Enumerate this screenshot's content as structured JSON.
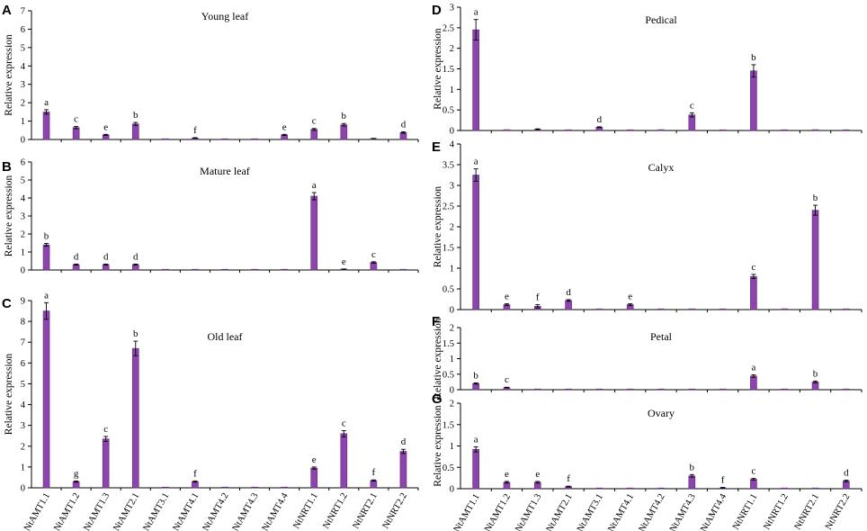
{
  "colors": {
    "bar": "#8e44ad",
    "bar_edge": "#5b2a72",
    "axis": "#000000"
  },
  "chart_data": [
    {
      "id": "A",
      "type": "bar",
      "title": "Young leaf",
      "ylabel": "Relative expression",
      "ylim": [
        0,
        7
      ],
      "yticks": [
        0,
        1,
        2,
        3,
        4,
        5,
        6,
        7
      ],
      "categories": [
        "NtAMT1.1",
        "NtAMT1.2",
        "NtAMT1.3",
        "NtAMT2.1",
        "NtAMT3.1",
        "NtAMT4.1",
        "NtAMT4.2",
        "NtAMT4.3",
        "NtAMT4.4",
        "NtNRT1.1",
        "NtNRT1.2",
        "NtNRT2.1",
        "NtNRT2.2"
      ],
      "values": [
        1.5,
        0.65,
        0.25,
        0.85,
        0.01,
        0.08,
        0.01,
        0.01,
        0.25,
        0.55,
        0.8,
        0.05,
        0.38
      ],
      "errors": [
        0.12,
        0.06,
        0.03,
        0.08,
        0,
        0.02,
        0,
        0,
        0.03,
        0.05,
        0.07,
        0.01,
        0.04
      ],
      "labels": [
        "a",
        "c",
        "e",
        "b",
        "",
        "f",
        "",
        "",
        "e",
        "c",
        "b",
        "",
        "d"
      ],
      "show_categories": false
    },
    {
      "id": "B",
      "type": "bar",
      "title": "Mature leaf",
      "ylabel": "Relative expression",
      "ylim": [
        0,
        6
      ],
      "yticks": [
        0,
        1,
        2,
        3,
        4,
        5,
        6
      ],
      "categories": [
        "NtAMT1.1",
        "NtAMT1.2",
        "NtAMT1.3",
        "NtAMT2.1",
        "NtAMT3.1",
        "NtAMT4.1",
        "NtAMT4.2",
        "NtAMT4.3",
        "NtAMT4.4",
        "NtNRT1.1",
        "NtNRT1.2",
        "NtNRT2.1",
        "NtNRT2.2"
      ],
      "values": [
        1.4,
        0.3,
        0.3,
        0.3,
        0.01,
        0.01,
        0,
        0,
        0,
        4.1,
        0.05,
        0.42,
        0
      ],
      "errors": [
        0.08,
        0.03,
        0.03,
        0.03,
        0,
        0,
        0,
        0,
        0,
        0.2,
        0.01,
        0.04,
        0
      ],
      "labels": [
        "b",
        "d",
        "d",
        "d",
        "",
        "",
        "",
        "",
        "",
        "a",
        "e",
        "c",
        ""
      ],
      "show_categories": false
    },
    {
      "id": "C",
      "type": "bar",
      "title": "Old leaf",
      "ylabel": "Relative expression",
      "ylim": [
        0,
        9
      ],
      "yticks": [
        0,
        1,
        2,
        3,
        4,
        5,
        6,
        7,
        8,
        9
      ],
      "categories": [
        "NtAMT1.1",
        "NtAMT1.2",
        "NtAMT1.3",
        "NtAMT2.1",
        "NtAMT3.1",
        "NtAMT4.1",
        "NtAMT4.2",
        "NtAMT4.3",
        "NtAMT4.4",
        "NtNRT1.1",
        "NtNRT1.2",
        "NtNRT2.1",
        "NtNRT2.2"
      ],
      "values": [
        8.5,
        0.3,
        2.35,
        6.7,
        0,
        0.3,
        0,
        0,
        0,
        0.95,
        2.6,
        0.35,
        1.75
      ],
      "errors": [
        0.4,
        0.03,
        0.12,
        0.35,
        0,
        0.03,
        0,
        0,
        0,
        0.05,
        0.15,
        0.03,
        0.1
      ],
      "labels": [
        "a",
        "g",
        "c",
        "b",
        "",
        "f",
        "",
        "",
        "",
        "e",
        "c",
        "f",
        "d"
      ],
      "show_categories": true
    },
    {
      "id": "D",
      "type": "bar",
      "title": "Pedical",
      "ylabel": "Relative expression",
      "ylim": [
        0,
        3
      ],
      "yticks": [
        0,
        0.5,
        1,
        1.5,
        2,
        2.5,
        3
      ],
      "categories": [
        "NtAMT1.1",
        "NtAMT1.2",
        "NtAMT1.3",
        "NtAMT2.1",
        "NtAMT3.1",
        "NtAMT4.1",
        "NtAMT4.2",
        "NtAMT4.3",
        "NtAMT4.4",
        "NtNRT1.1",
        "NtNRT1.2",
        "NtNRT2.1",
        "NtNRT2.2"
      ],
      "values": [
        2.45,
        0.02,
        0.03,
        0.01,
        0.08,
        0,
        0.02,
        0.38,
        0,
        1.45,
        0.01,
        0.02,
        0.01
      ],
      "errors": [
        0.25,
        0,
        0.01,
        0,
        0.01,
        0,
        0,
        0.05,
        0,
        0.15,
        0,
        0,
        0
      ],
      "labels": [
        "a",
        "",
        "",
        "",
        "d",
        "",
        "",
        "c",
        "",
        "b",
        "",
        "",
        ""
      ],
      "show_categories": false
    },
    {
      "id": "E",
      "type": "bar",
      "title": "Calyx",
      "ylabel": "Relative expression",
      "ylim": [
        0,
        4
      ],
      "yticks": [
        0,
        0.5,
        1,
        1.5,
        2,
        2.5,
        3,
        3.5,
        4
      ],
      "categories": [
        "NtAMT1.1",
        "NtAMT1.2",
        "NtAMT1.3",
        "NtAMT2.1",
        "NtAMT3.1",
        "NtAMT4.1",
        "NtAMT4.2",
        "NtAMT4.3",
        "NtAMT4.4",
        "NtNRT1.1",
        "NtNRT1.2",
        "NtNRT2.1",
        "NtNRT2.2"
      ],
      "values": [
        3.25,
        0.12,
        0.08,
        0.22,
        0,
        0.12,
        0,
        0,
        0,
        0.8,
        0.02,
        2.4,
        0.01
      ],
      "errors": [
        0.15,
        0.02,
        0.04,
        0.02,
        0,
        0.02,
        0,
        0,
        0,
        0.05,
        0,
        0.12,
        0
      ],
      "labels": [
        "a",
        "e",
        "f",
        "d",
        "",
        "e",
        "",
        "",
        "",
        "c",
        "",
        "b",
        ""
      ],
      "show_categories": false
    },
    {
      "id": "F",
      "type": "bar",
      "title": "Petal",
      "ylabel": "Relative expression",
      "ylim": [
        0,
        2
      ],
      "yticks": [
        0,
        0.5,
        1,
        1.5,
        2
      ],
      "categories": [
        "NtAMT1.1",
        "NtAMT1.2",
        "NtAMT1.3",
        "NtAMT2.1",
        "NtAMT3.1",
        "NtAMT4.1",
        "NtAMT4.2",
        "NtAMT4.3",
        "NtAMT4.4",
        "NtNRT1.1",
        "NtNRT1.2",
        "NtNRT2.1",
        "NtNRT2.2"
      ],
      "values": [
        0.2,
        0.07,
        0.01,
        0,
        0.01,
        0.01,
        0,
        0.01,
        0,
        0.44,
        0,
        0.25,
        0.01
      ],
      "errors": [
        0.02,
        0.01,
        0,
        0,
        0,
        0,
        0,
        0,
        0,
        0.04,
        0,
        0.03,
        0
      ],
      "labels": [
        "b",
        "c",
        "",
        "",
        "",
        "",
        "",
        "",
        "",
        "a",
        "",
        "b",
        ""
      ],
      "show_categories": false
    },
    {
      "id": "G",
      "type": "bar",
      "title": "Ovary",
      "ylabel": "Relative expression",
      "ylim": [
        0,
        2
      ],
      "yticks": [
        0,
        0.5,
        1,
        1.5,
        2
      ],
      "categories": [
        "NtAMT1.1",
        "NtAMT1.2",
        "NtAMT1.3",
        "NtAMT2.1",
        "NtAMT3.1",
        "NtAMT4.1",
        "NtAMT4.2",
        "NtAMT4.3",
        "NtAMT4.4",
        "NtNRT1.1",
        "NtNRT1.2",
        "NtNRT2.1",
        "NtNRT2.2"
      ],
      "values": [
        0.92,
        0.15,
        0.15,
        0.05,
        0.01,
        0.01,
        0.01,
        0.3,
        0.02,
        0.22,
        0.01,
        0.01,
        0.18
      ],
      "errors": [
        0.06,
        0.02,
        0.02,
        0.01,
        0,
        0,
        0,
        0.03,
        0.01,
        0.02,
        0,
        0,
        0.02
      ],
      "labels": [
        "a",
        "e",
        "e",
        "f",
        "",
        "",
        "",
        "b",
        "f",
        "c",
        "",
        "",
        "d"
      ],
      "show_categories": true
    }
  ]
}
